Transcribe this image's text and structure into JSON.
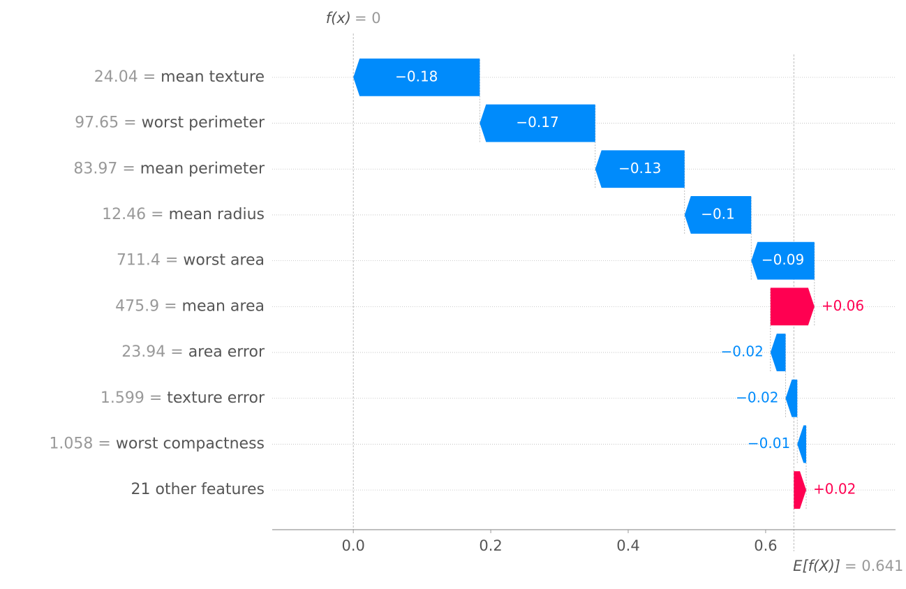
{
  "chart_data": {
    "type": "waterfall",
    "categories": [
      "mean texture",
      "worst perimeter",
      "mean perimeter",
      "mean radius",
      "worst area",
      "mean area",
      "area error",
      "texture error",
      "worst compactness",
      "21 other features"
    ],
    "feature_values": [
      "24.04 =",
      "97.65 =",
      "83.97 =",
      "12.46 =",
      "711.4 =",
      "475.9 =",
      "23.94 =",
      "1.599 =",
      "1.058 =",
      null
    ],
    "values": [
      -0.184,
      -0.168,
      -0.13,
      -0.097,
      -0.092,
      0.064,
      -0.022,
      -0.017,
      -0.013,
      0.018
    ],
    "value_labels": [
      "−0.18",
      "−0.17",
      "−0.13",
      "−0.1",
      "−0.09",
      "+0.06",
      "−0.02",
      "−0.02",
      "−0.01",
      "+0.02"
    ],
    "positive_color": "#ff0051",
    "negative_color": "#008bfb",
    "final_value": {
      "label": "f(x)",
      "value": 0,
      "value_label": "= 0"
    },
    "base_value": {
      "label": "E[f(X)]",
      "value": 0.641,
      "value_label": "= 0.641"
    },
    "xlim": [
      -0.118,
      0.789
    ],
    "xticks": [
      {
        "value": 0,
        "label": "0.0"
      },
      0.2,
      0.4,
      0.6
    ],
    "grid": true
  }
}
